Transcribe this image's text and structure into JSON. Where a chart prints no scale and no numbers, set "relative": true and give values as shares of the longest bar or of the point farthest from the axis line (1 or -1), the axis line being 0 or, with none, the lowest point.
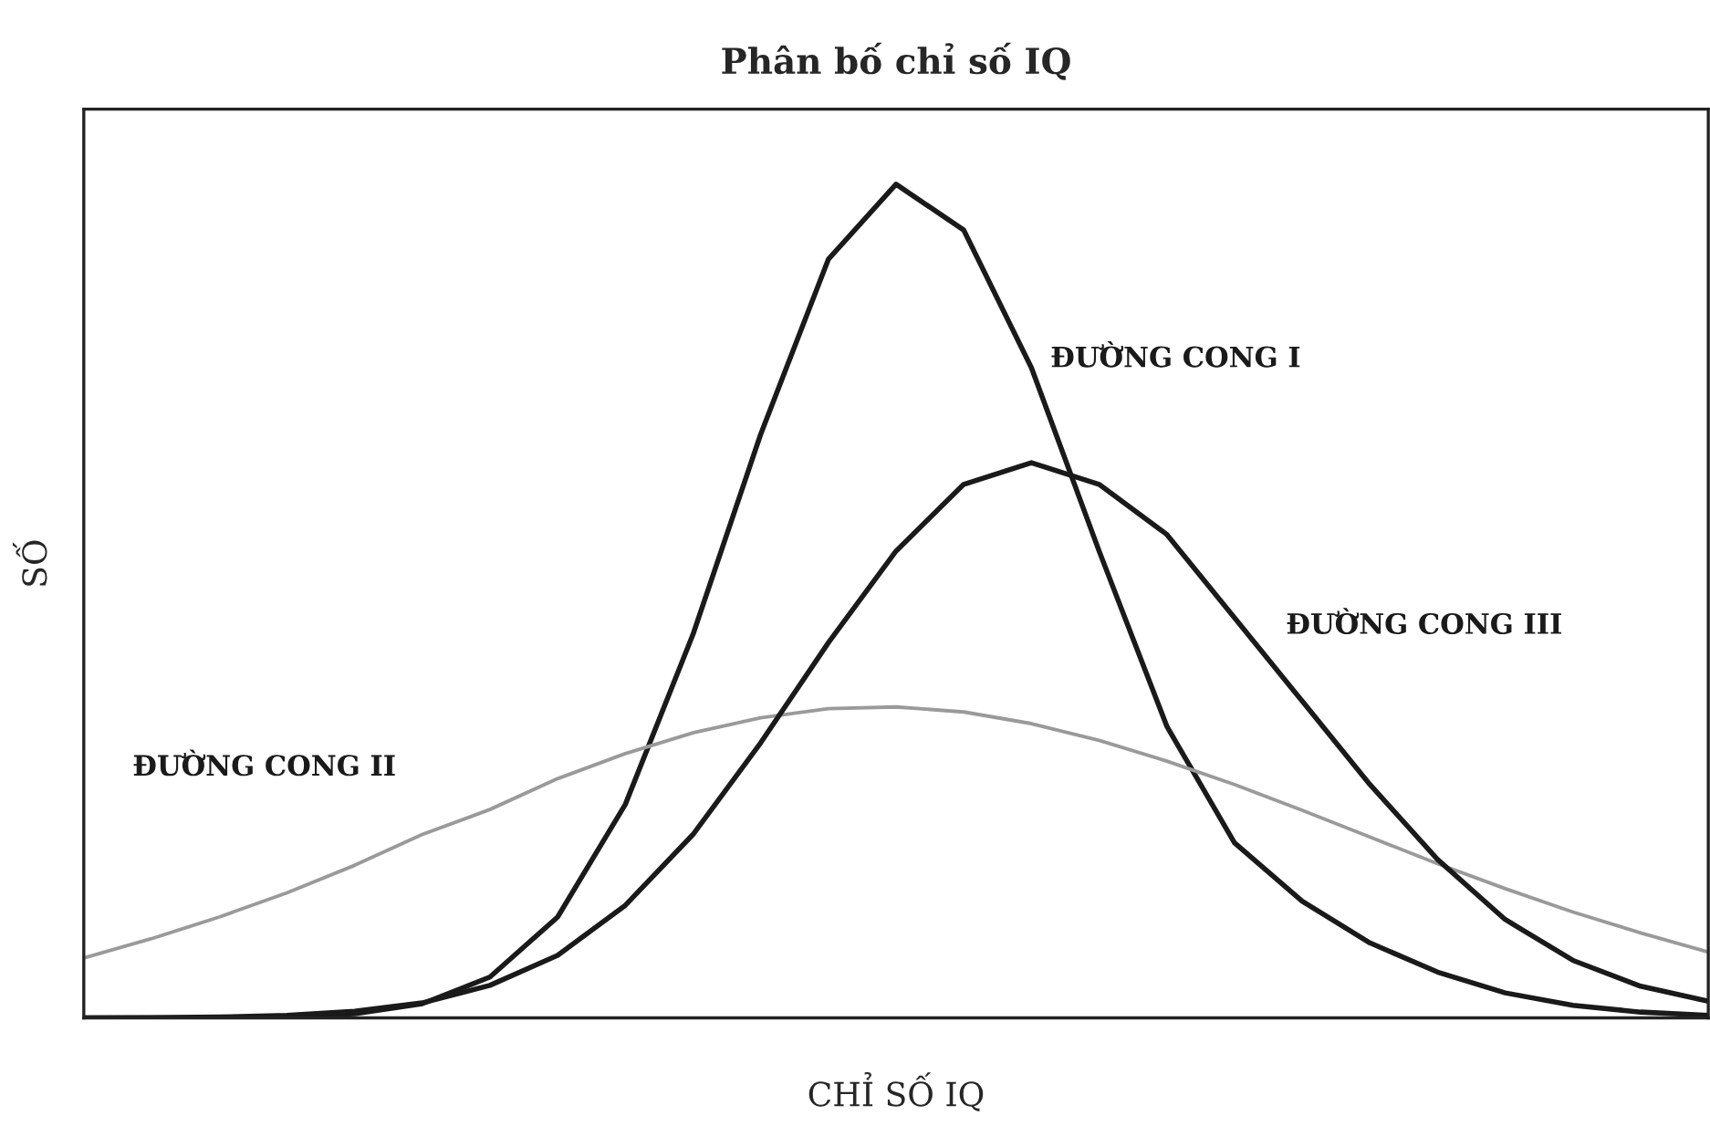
{
  "chart_data": {
    "type": "line",
    "title": "Phân bố chỉ số IQ",
    "xlabel": "CHỈ SỐ IQ",
    "ylabel": "SỐ",
    "relative": true,
    "legend": false,
    "marker": "none",
    "line_style": "solid",
    "categories": [
      null,
      null,
      null,
      null,
      null,
      null,
      null,
      null,
      null,
      null,
      null,
      null,
      null,
      null,
      null,
      null,
      null,
      null,
      null,
      null,
      null,
      null,
      null,
      null,
      null
    ],
    "series": [
      {
        "name": "ĐƯỜNG CONG I",
        "color": "#1a1a1a",
        "values": [
          0.0,
          0.0,
          0.0,
          0.001,
          0.005,
          0.017,
          0.049,
          0.121,
          0.256,
          0.46,
          0.7,
          0.91,
          1.0,
          0.945,
          0.78,
          0.56,
          0.35,
          0.21,
          0.14,
          0.09,
          0.055,
          0.03,
          0.015,
          0.007,
          0.003
        ]
      },
      {
        "name": "ĐƯỜNG CONG II",
        "color": "#9a9a9a",
        "values": [
          0.072,
          0.095,
          0.121,
          0.15,
          0.183,
          0.22,
          0.25,
          0.287,
          0.317,
          0.342,
          0.36,
          0.371,
          0.373,
          0.367,
          0.353,
          0.333,
          0.308,
          0.28,
          0.249,
          0.217,
          0.185,
          0.155,
          0.127,
          0.102,
          0.079
        ]
      },
      {
        "name": "ĐƯỜNG CONG III",
        "color": "#1a1a1a",
        "values": [
          0.0,
          0.0004,
          0.001,
          0.003,
          0.008,
          0.018,
          0.039,
          0.075,
          0.135,
          0.22,
          0.33,
          0.45,
          0.56,
          0.64,
          0.666,
          0.64,
          0.58,
          0.48,
          0.38,
          0.28,
          0.19,
          0.118,
          0.069,
          0.038,
          0.02
        ]
      }
    ]
  }
}
